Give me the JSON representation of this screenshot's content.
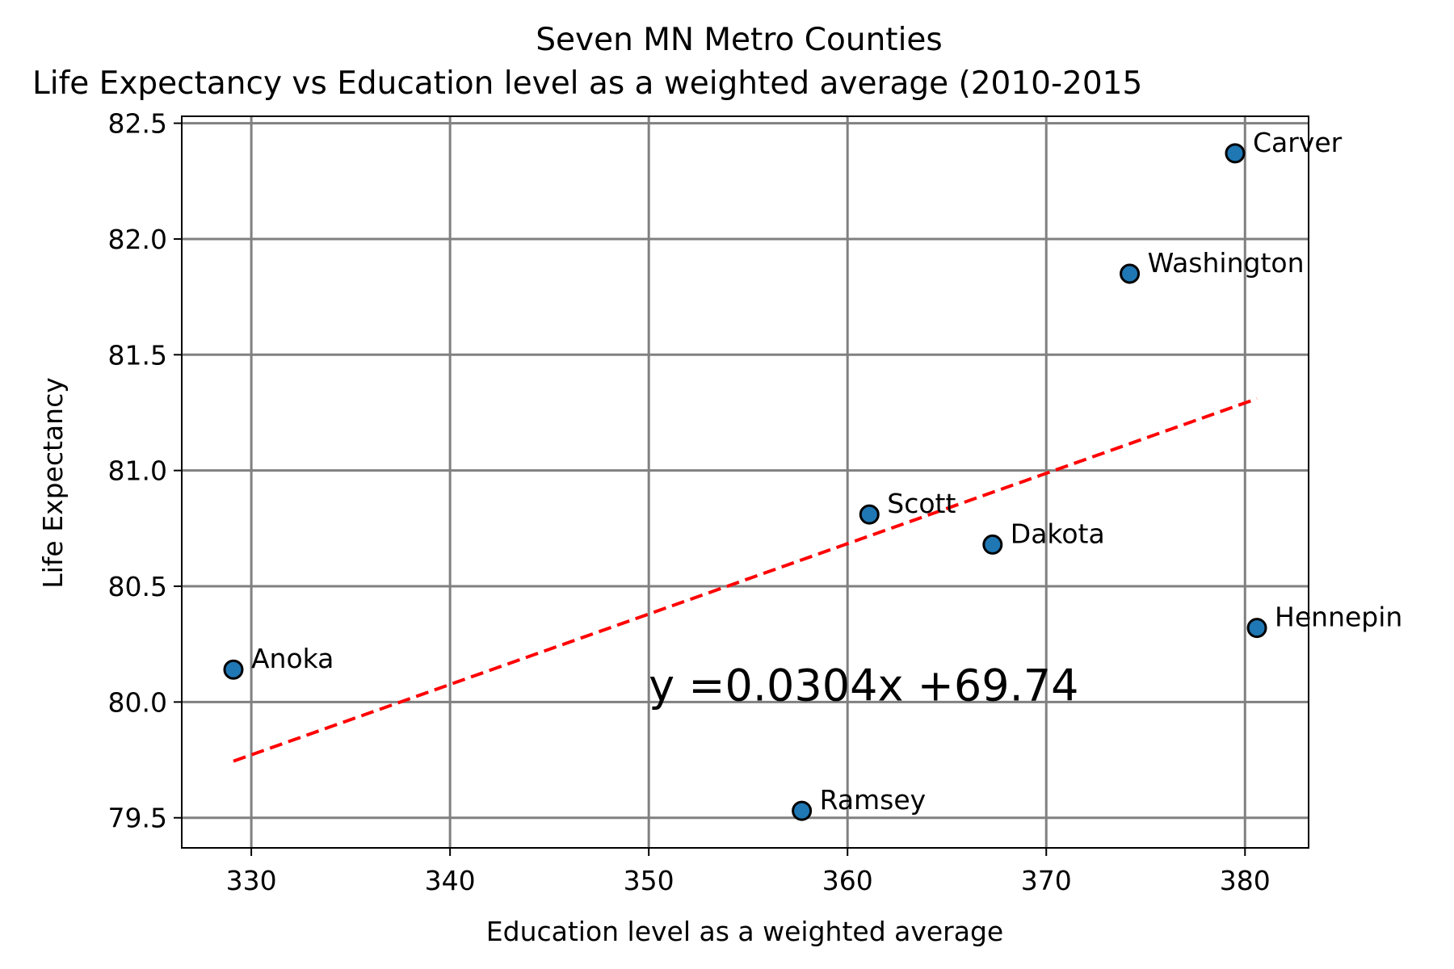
{
  "chart_data": {
    "type": "scatter",
    "title": "Seven MN Metro Counties",
    "subtitle": "Life Expectancy vs Education level as a weighted average (2010-2015",
    "xlabel": "Education level as a weighted average",
    "ylabel": "Life Expectancy",
    "xlim": [
      326.5,
      383.2
    ],
    "ylim": [
      79.37,
      82.53
    ],
    "xticks": [
      330,
      340,
      350,
      360,
      370,
      380
    ],
    "yticks": [
      79.5,
      80.0,
      80.5,
      81.0,
      81.5,
      82.0,
      82.5
    ],
    "xtick_labels": [
      "330",
      "340",
      "350",
      "360",
      "370",
      "380"
    ],
    "ytick_labels": [
      "79.5",
      "80.0",
      "80.5",
      "81.0",
      "81.5",
      "82.0",
      "82.5"
    ],
    "grid": true,
    "points": [
      {
        "label": "Anoka",
        "x": 329.1,
        "y": 80.14
      },
      {
        "label": "Carver",
        "x": 379.5,
        "y": 82.37
      },
      {
        "label": "Dakota",
        "x": 367.3,
        "y": 80.68
      },
      {
        "label": "Hennepin",
        "x": 380.6,
        "y": 80.32
      },
      {
        "label": "Ramsey",
        "x": 357.7,
        "y": 79.53
      },
      {
        "label": "Scott",
        "x": 361.1,
        "y": 80.81
      },
      {
        "label": "Washington",
        "x": 374.2,
        "y": 81.85
      }
    ],
    "regression": {
      "slope": 0.0304,
      "intercept": 69.74,
      "x_range": [
        329.1,
        380.6
      ],
      "equation_label": "y =0.0304x +69.74",
      "equation_position": {
        "x": 350.0,
        "y": 80.0
      }
    },
    "colors": {
      "point_fill": "#1f77b4",
      "point_edge": "#000000",
      "line": "#ff0000",
      "equation": "#0000ff",
      "grid": "#808080"
    }
  }
}
